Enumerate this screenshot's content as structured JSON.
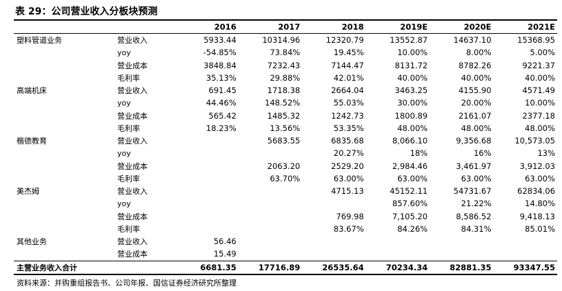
{
  "title": "表 29：公司营业收入分板块预测",
  "table": {
    "headers": [
      "",
      "",
      "2016",
      "2017",
      "2018",
      "2019E",
      "2020E",
      "2021E"
    ],
    "rows": [
      [
        "塑料管道业务",
        "营业收入",
        "5933.44",
        "10314.96",
        "12320.79",
        "13552.87",
        "14637.10",
        "15368.95"
      ],
      [
        "",
        "yoy",
        "-54.85%",
        "73.84%",
        "19.45%",
        "10.00%",
        "8.00%",
        "5.00%"
      ],
      [
        "",
        "营业成本",
        "3848.84",
        "7232.43",
        "7144.47",
        "8131.72",
        "8782.26",
        "9221.37"
      ],
      [
        "",
        "毛利率",
        "35.13%",
        "29.88%",
        "42.01%",
        "40.00%",
        "40.00%",
        "40.00%"
      ],
      [
        "高端机床",
        "营业收入",
        "691.45",
        "1718.38",
        "2664.04",
        "3463.25",
        "4155.90",
        "4571.49"
      ],
      [
        "",
        "yoy",
        "44.46%",
        "148.52%",
        "55.03%",
        "30.00%",
        "20.00%",
        "10.00%"
      ],
      [
        "",
        "营业成本",
        "565.42",
        "1485.32",
        "1242.73",
        "1800.89",
        "2161.07",
        "2377.18"
      ],
      [
        "",
        "毛利率",
        "18.23%",
        "13.56%",
        "53.35%",
        "48.00%",
        "48.00%",
        "48.00%"
      ],
      [
        "楷德教育",
        "营业收入",
        "",
        "5683.55",
        "6835.68",
        "8,066.10",
        "9,356.68",
        "10,573.05"
      ],
      [
        "",
        "yoy",
        "",
        "",
        "20.27%",
        "18%",
        "16%",
        "13%"
      ],
      [
        "",
        "营业成本",
        "",
        "2063.20",
        "2529.20",
        "2,984.46",
        "3,461.97",
        "3,912.03"
      ],
      [
        "",
        "毛利率",
        "",
        "63.70%",
        "63.00%",
        "63.00%",
        "63.00%",
        "63.00%"
      ],
      [
        "美杰姆",
        "营业收入",
        "",
        "",
        "4715.13",
        "45152.11",
        "54731.67",
        "62834.06"
      ],
      [
        "",
        "yoy",
        "",
        "",
        "",
        "857.60%",
        "21.22%",
        "14.80%"
      ],
      [
        "",
        "营业成本",
        "",
        "",
        "769.98",
        "7,105.20",
        "8,586.52",
        "9,418.13"
      ],
      [
        "",
        "毛利率",
        "",
        "",
        "83.67%",
        "84.26%",
        "84.31%",
        "85.01%"
      ],
      [
        "其他业务",
        "营业收入",
        "56.46",
        "",
        "",
        "",
        "",
        ""
      ],
      [
        "",
        "营业成本",
        "15.49",
        "",
        "",
        "",
        "",
        ""
      ]
    ],
    "total": [
      "主营业务收入合计",
      "",
      "6681.35",
      "17716.89",
      "26535.64",
      "70234.34",
      "82881.35",
      "93347.55"
    ]
  },
  "source": "资料来源：并购重组报告书、公司年报、国信证券经济研究所整理"
}
